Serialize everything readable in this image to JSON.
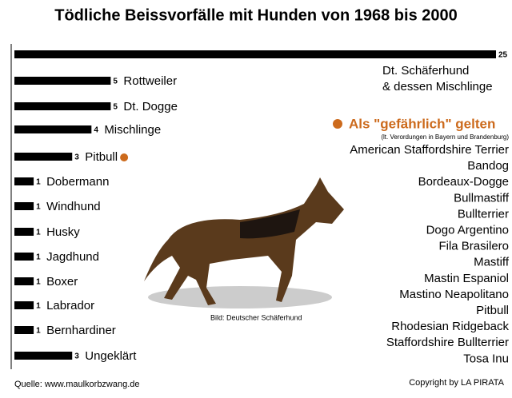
{
  "chart_data": {
    "type": "bar",
    "orientation": "horizontal",
    "title": "Tödliche Beissvorfälle mit Hunden von 1968 bis 2000",
    "categories": [
      "Dt. Schäferhund\n& dessen Mischlinge",
      "Rottweiler",
      "Dt. Dogge",
      "Mischlinge",
      "Pitbull",
      "Dobermann",
      "Windhund",
      "Husky",
      "Jagdhund",
      "Boxer",
      "Labrador",
      "Bernhardiner",
      "Ungeklärt"
    ],
    "values": [
      25,
      5,
      5,
      4,
      3,
      1,
      1,
      1,
      1,
      1,
      1,
      1,
      3
    ],
    "color": "#000000",
    "xlim": [
      0,
      25
    ],
    "highlight_color": "#cc6a1c",
    "highlight_index": 4,
    "dangerous": {
      "heading": "Als \"gefährlich\" gelten",
      "note": "(lt. Verordungen in Bayern und Brandenburg)",
      "breeds": [
        "American Staffordshire Terrier",
        "Bandog",
        "Bordeaux-Dogge",
        "Bullmastiff",
        "Bullterrier",
        "Dogo Argentino",
        "Fila Brasilero",
        "Mastiff",
        "Mastin Espaniol",
        "Mastino Neapolitano",
        "Pitbull",
        "Rhodesian Ridgeback",
        "Staffordshire Bullterrier",
        "Tosa Inu"
      ]
    },
    "image_caption": "Bild: Deutscher Schäferhund",
    "source": "Quelle: www.maulkorbzwang.de",
    "copyright": "Copyright by LA PIRATA"
  }
}
